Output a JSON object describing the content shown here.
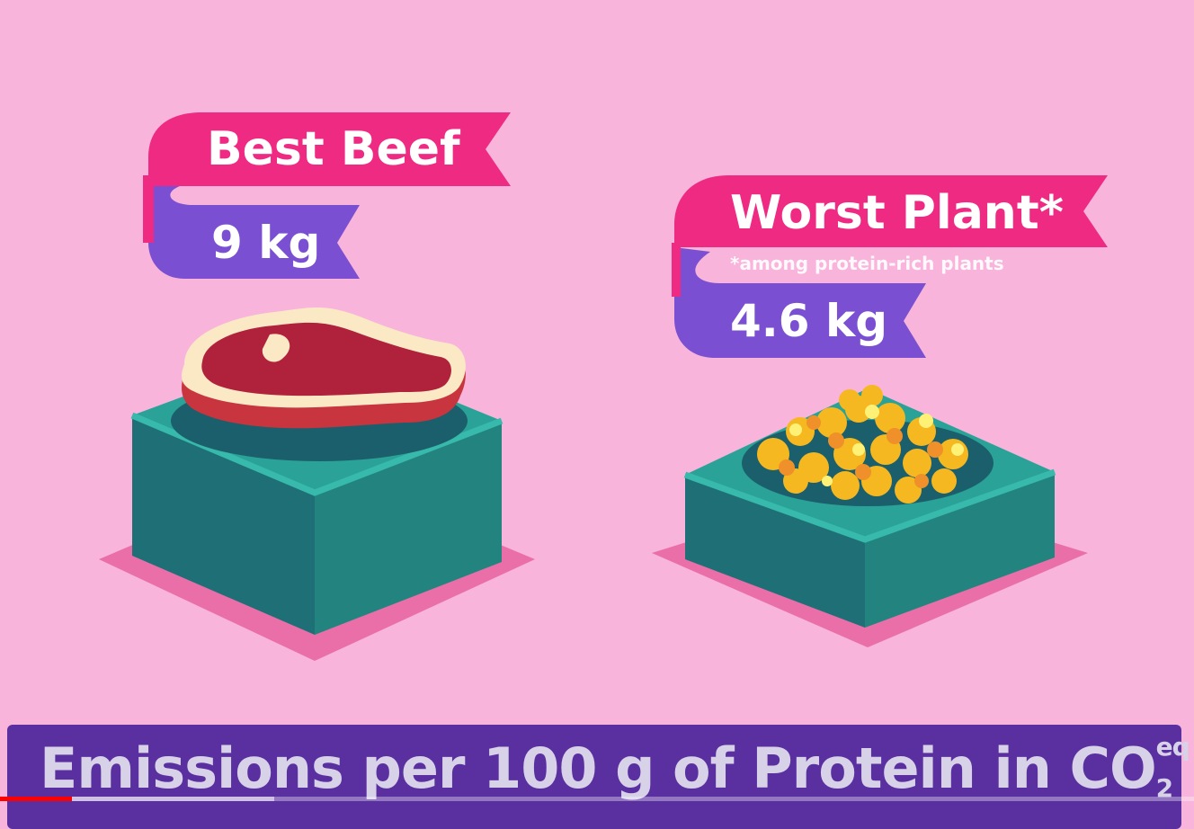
{
  "left_label": {
    "title": "Best Beef",
    "value": "9 kg"
  },
  "right_label": {
    "title": "Worst Plant*",
    "footnote": "*among protein-rich plants",
    "value": "4.6 kg"
  },
  "caption": {
    "main": "Emissions per 100 g of Protein in CO",
    "subscript": "2",
    "superscript": "eq"
  },
  "player": {
    "progress": 0.06,
    "buffered": 0.23
  },
  "colors": {
    "background": "#f8b4da",
    "banner_pink": "#ee2a83",
    "banner_purple": "#7a4fd2",
    "box_teal": "#27938a",
    "caption_bar": "#5a2fa0",
    "progress_red": "#ff0000"
  }
}
